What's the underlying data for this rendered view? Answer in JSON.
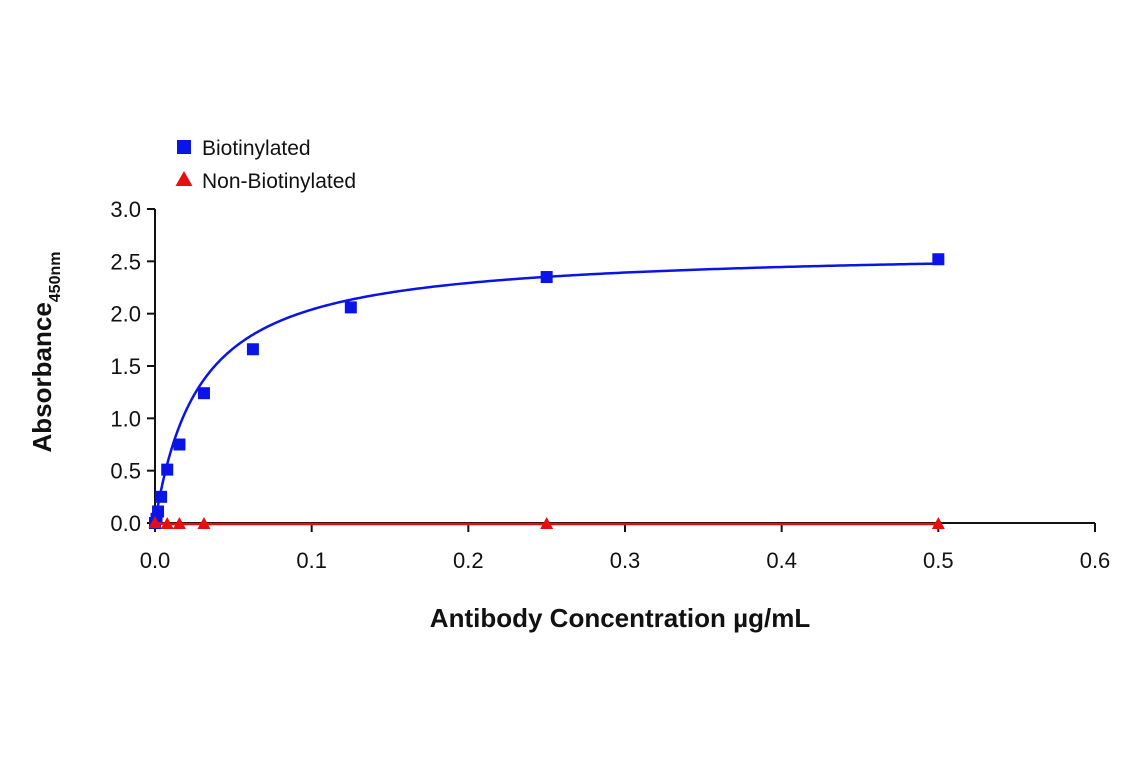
{
  "chart_data": {
    "type": "line",
    "title": "",
    "xlabel": "Antibody Concentration µg/mL",
    "ylabel": "Absorbance",
    "ylabel_subscript": "450nm",
    "xlim": [
      0,
      0.6
    ],
    "ylim": [
      0,
      3.0
    ],
    "x_ticks": [
      0.0,
      0.1,
      0.2,
      0.3,
      0.4,
      0.5,
      0.6
    ],
    "x_tick_labels": [
      "0.0",
      "0.1",
      "0.2",
      "0.3",
      "0.4",
      "0.5",
      "0.6"
    ],
    "y_ticks": [
      0.0,
      0.5,
      1.0,
      1.5,
      2.0,
      2.5,
      3.0
    ],
    "y_tick_labels": [
      "0.0",
      "0.5",
      "1.0",
      "1.5",
      "2.0",
      "2.5",
      "3.0"
    ],
    "grid": false,
    "legend_position": "top-left",
    "series": [
      {
        "name": "Biotinylated",
        "color": "#0a14e6",
        "marker": "square",
        "x": [
          0.0,
          0.00098,
          0.00195,
          0.0039,
          0.0078,
          0.0156,
          0.03125,
          0.0625,
          0.125,
          0.25,
          0.5
        ],
        "y": [
          0.0,
          0.04,
          0.11,
          0.25,
          0.51,
          0.75,
          1.24,
          1.66,
          2.06,
          2.35,
          2.52
        ]
      },
      {
        "name": "Non-Biotinylated",
        "color": "#e60f0f",
        "marker": "triangle",
        "x": [
          0.0,
          0.0078,
          0.0156,
          0.03125,
          0.25,
          0.5
        ],
        "y": [
          0.0,
          -0.01,
          -0.01,
          -0.01,
          -0.01,
          -0.01
        ]
      }
    ]
  }
}
